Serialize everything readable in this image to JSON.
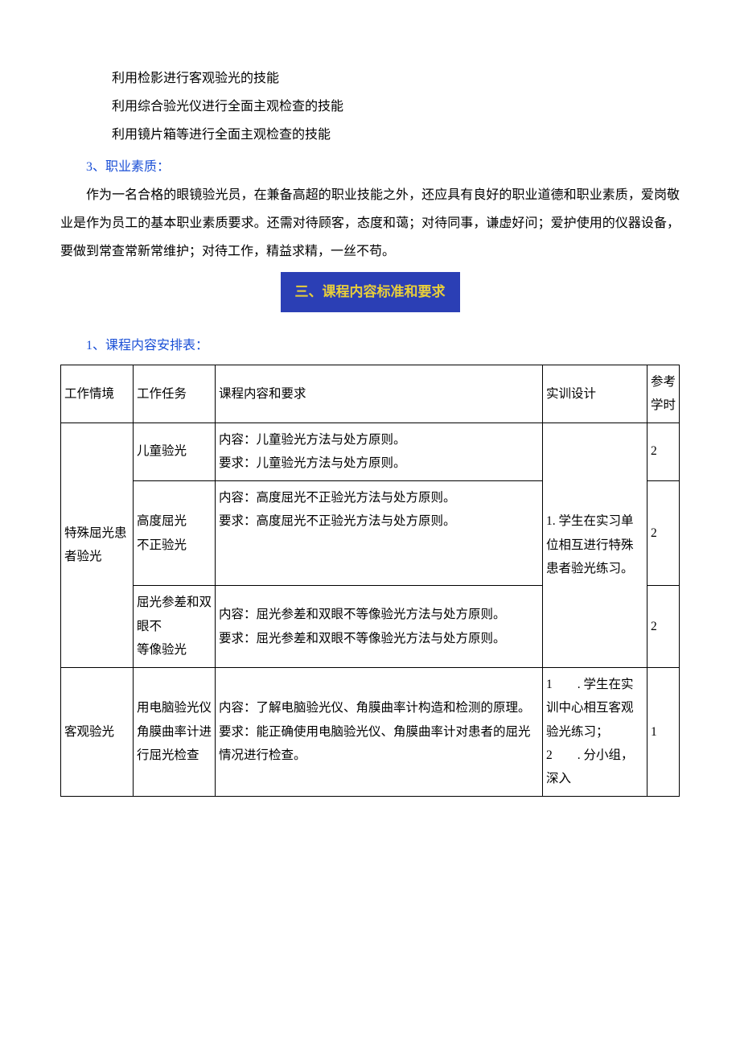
{
  "skills": {
    "s1": "利用检影进行客观验光的技能",
    "s2": "利用综合验光仪进行全面主观检查的技能",
    "s3": "利用镜片箱等进行全面主观检查的技能"
  },
  "section_label_3": "3、职业素质：",
  "quality_para": "作为一名合格的眼镜验光员，在兼备高超的职业技能之外，还应具有良好的职业道德和职业素质，爱岗敬业是作为员工的基本职业素质要求。还需对待顾客，态度和蔼；对待同事，谦虚好问；爱护使用的仪器设备，要做到常查常新常维护；对待工作，精益求精，一丝不苟。",
  "section_header_3": "三、课程内容标准和要求",
  "sub_label_1": "1、课程内容安排表：",
  "table": {
    "headers": {
      "c1": "工作情境",
      "c2": "工作任务",
      "c3": "课程内容和要求",
      "c4": "实训设计",
      "c5_l1": "参考",
      "c5_l2": "学时"
    },
    "row_group_1_context": "特殊屈光患者验光",
    "r1": {
      "task": "儿童验光",
      "content_l1": "内容：儿童验光方法与处方原则。",
      "content_l2": "要求：儿童验光方法与处方原则。",
      "hours": "2"
    },
    "r2": {
      "task_l1": "高度屈光",
      "task_l2": "不正验光",
      "content_l1": "内容：高度屈光不正验光方法与处方原则。",
      "content_l2": "要求：高度屈光不正验光方法与处方原则。",
      "hours": "2"
    },
    "r3": {
      "task_l1": "屈光参差和双眼不",
      "task_l2": "等像验光",
      "content_l1": "内容：屈光参差和双眼不等像验光方法与处方原则。",
      "content_l2": "要求：屈光参差和双眼不等像验光方法与处方原则。",
      "hours": "2"
    },
    "group1_design": "1. 学生在实习单位相互进行特殊患者验光练习。",
    "row_group_2_context": "客观验光",
    "r4": {
      "task": "用电脑验光仪角膜曲率计进行屈光检查",
      "content_l1": "内容：了解电脑验光仪、角膜曲率计构造和检测的原理。",
      "content_l2": "要求：能正确使用电脑验光仪、角膜曲率计对患者的屈光情况进行检查。",
      "hours": "1"
    },
    "group2_design_l1": "1　　. 学生在实训中心相互客观验光练习；",
    "group2_design_l2": "2　　. 分小组，深入"
  }
}
